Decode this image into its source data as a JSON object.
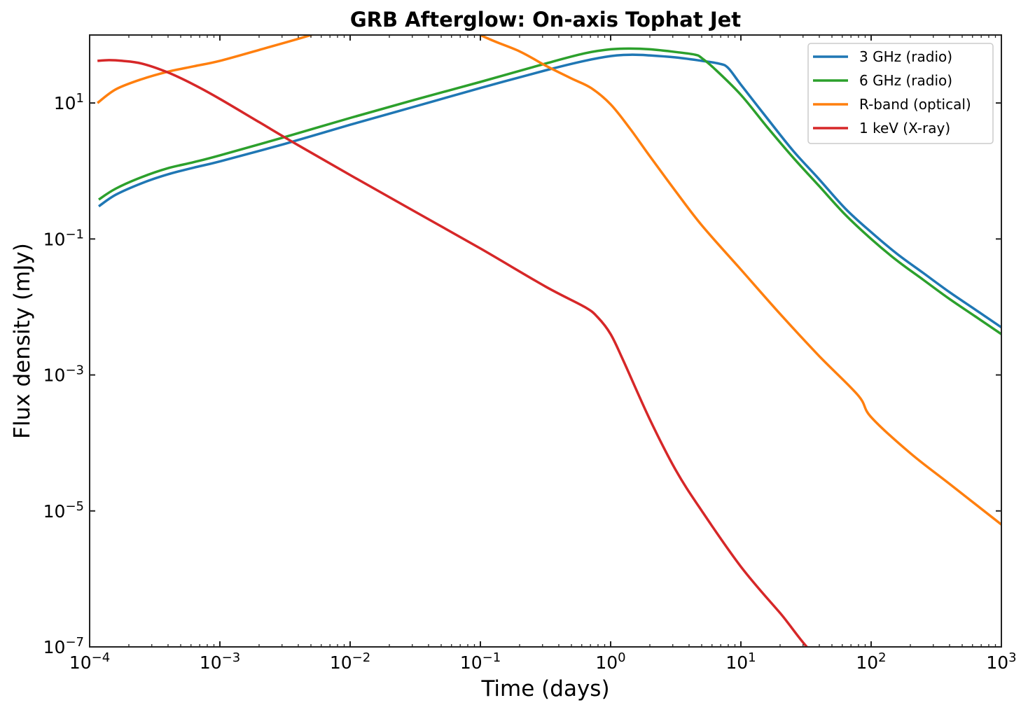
{
  "chart_data": {
    "type": "line",
    "title": "GRB Afterglow: On-axis Tophat Jet",
    "xlabel": "Time (days)",
    "ylabel": "Flux density (mJy)",
    "xscale": "log",
    "yscale": "log",
    "xlim": [
      0.0001,
      1000
    ],
    "ylim": [
      1e-07,
      100
    ],
    "grid": false,
    "legend_position": "upper right",
    "x_ticks": [
      {
        "exp": -4,
        "base": "10",
        "sup": "−4"
      },
      {
        "exp": -3,
        "base": "10",
        "sup": "−3"
      },
      {
        "exp": -2,
        "base": "10",
        "sup": "−2"
      },
      {
        "exp": -1,
        "base": "10",
        "sup": "−1"
      },
      {
        "exp": 0,
        "base": "10",
        "sup": "0"
      },
      {
        "exp": 1,
        "base": "10",
        "sup": "1"
      },
      {
        "exp": 2,
        "base": "10",
        "sup": "2"
      },
      {
        "exp": 3,
        "base": "10",
        "sup": "3"
      }
    ],
    "y_ticks": [
      {
        "exp": 1,
        "base": "10",
        "sup": "1"
      },
      {
        "exp": -1,
        "base": "10",
        "sup": "−1"
      },
      {
        "exp": -3,
        "base": "10",
        "sup": "−3"
      },
      {
        "exp": -5,
        "base": "10",
        "sup": "−5"
      },
      {
        "exp": -7,
        "base": "10",
        "sup": "−7"
      }
    ],
    "series": [
      {
        "name": "3 GHz (radio)",
        "color": "#1f77b4",
        "log_x": [
          -3.93,
          -3.8,
          -3.6,
          -3.4,
          -3.2,
          -3.0,
          -2.5,
          -2.0,
          -1.5,
          -1.0,
          -0.5,
          -0.2,
          0.0,
          0.15,
          0.3,
          0.5,
          0.7,
          0.83,
          0.9,
          1.0,
          1.2,
          1.4,
          1.6,
          1.8,
          2.0,
          2.2,
          2.4,
          2.6,
          2.8,
          3.0
        ],
        "log_y": [
          -0.52,
          -0.35,
          -0.18,
          -0.05,
          0.05,
          0.14,
          0.4,
          0.68,
          0.95,
          1.22,
          1.48,
          1.62,
          1.69,
          1.71,
          1.7,
          1.67,
          1.62,
          1.58,
          1.52,
          1.27,
          0.78,
          0.3,
          -0.12,
          -0.55,
          -0.9,
          -1.22,
          -1.5,
          -1.78,
          -2.04,
          -2.3
        ]
      },
      {
        "name": "6 GHz (radio)",
        "color": "#2ca02c",
        "log_x": [
          -3.93,
          -3.8,
          -3.6,
          -3.4,
          -3.2,
          -3.0,
          -2.5,
          -2.0,
          -1.5,
          -1.0,
          -0.5,
          -0.2,
          0.0,
          0.15,
          0.3,
          0.5,
          0.65,
          0.7,
          0.8,
          1.0,
          1.2,
          1.4,
          1.6,
          1.8,
          2.0,
          2.2,
          2.4,
          2.6,
          2.8,
          3.0
        ],
        "log_y": [
          -0.42,
          -0.26,
          -0.09,
          0.04,
          0.13,
          0.23,
          0.5,
          0.78,
          1.05,
          1.31,
          1.58,
          1.73,
          1.79,
          1.8,
          1.79,
          1.75,
          1.71,
          1.66,
          1.5,
          1.12,
          0.65,
          0.2,
          -0.22,
          -0.64,
          -1.0,
          -1.32,
          -1.6,
          -1.88,
          -2.14,
          -2.4
        ]
      },
      {
        "name": "R-band (optical)",
        "color": "#ff7f0e",
        "log_x": [
          -3.94,
          -3.8,
          -3.6,
          -3.4,
          -3.2,
          -3.0,
          -2.7,
          -2.3,
          -2.0,
          -1.5,
          -1.0,
          -0.7,
          -0.5,
          -0.3,
          -0.15,
          0.0,
          0.15,
          0.3,
          0.5,
          0.7,
          1.0,
          1.3,
          1.6,
          1.9,
          2.0,
          2.3,
          2.6,
          3.0
        ],
        "log_y": [
          1.0,
          1.2,
          1.35,
          1.46,
          1.54,
          1.62,
          1.78,
          2.0,
          2.2,
          2.5,
          2.0,
          1.76,
          1.55,
          1.36,
          1.22,
          0.98,
          0.62,
          0.22,
          -0.3,
          -0.8,
          -1.45,
          -2.1,
          -2.72,
          -3.3,
          -3.62,
          -4.15,
          -4.6,
          -5.2
        ]
      },
      {
        "name": "1 keV (X-ray)",
        "color": "#d62728",
        "log_x": [
          -3.94,
          -3.85,
          -3.75,
          -3.6,
          -3.4,
          -3.2,
          -3.0,
          -2.7,
          -2.4,
          -2.0,
          -1.5,
          -1.0,
          -0.5,
          -0.2,
          -0.1,
          0.0,
          0.1,
          0.3,
          0.5,
          0.7,
          1.0,
          1.3,
          1.6,
          1.85
        ],
        "log_y": [
          1.62,
          1.63,
          1.62,
          1.58,
          1.45,
          1.27,
          1.06,
          0.72,
          0.38,
          -0.06,
          -0.6,
          -1.14,
          -1.7,
          -2.0,
          -2.15,
          -2.4,
          -2.8,
          -3.65,
          -4.4,
          -5.0,
          -5.82,
          -6.5,
          -7.15,
          -7.0
        ]
      }
    ]
  },
  "legend": {
    "items": [
      {
        "label": "3 GHz (radio)",
        "color": "#1f77b4"
      },
      {
        "label": "6 GHz (radio)",
        "color": "#2ca02c"
      },
      {
        "label": "R-band (optical)",
        "color": "#ff7f0e"
      },
      {
        "label": "1 keV (X-ray)",
        "color": "#d62728"
      }
    ]
  }
}
